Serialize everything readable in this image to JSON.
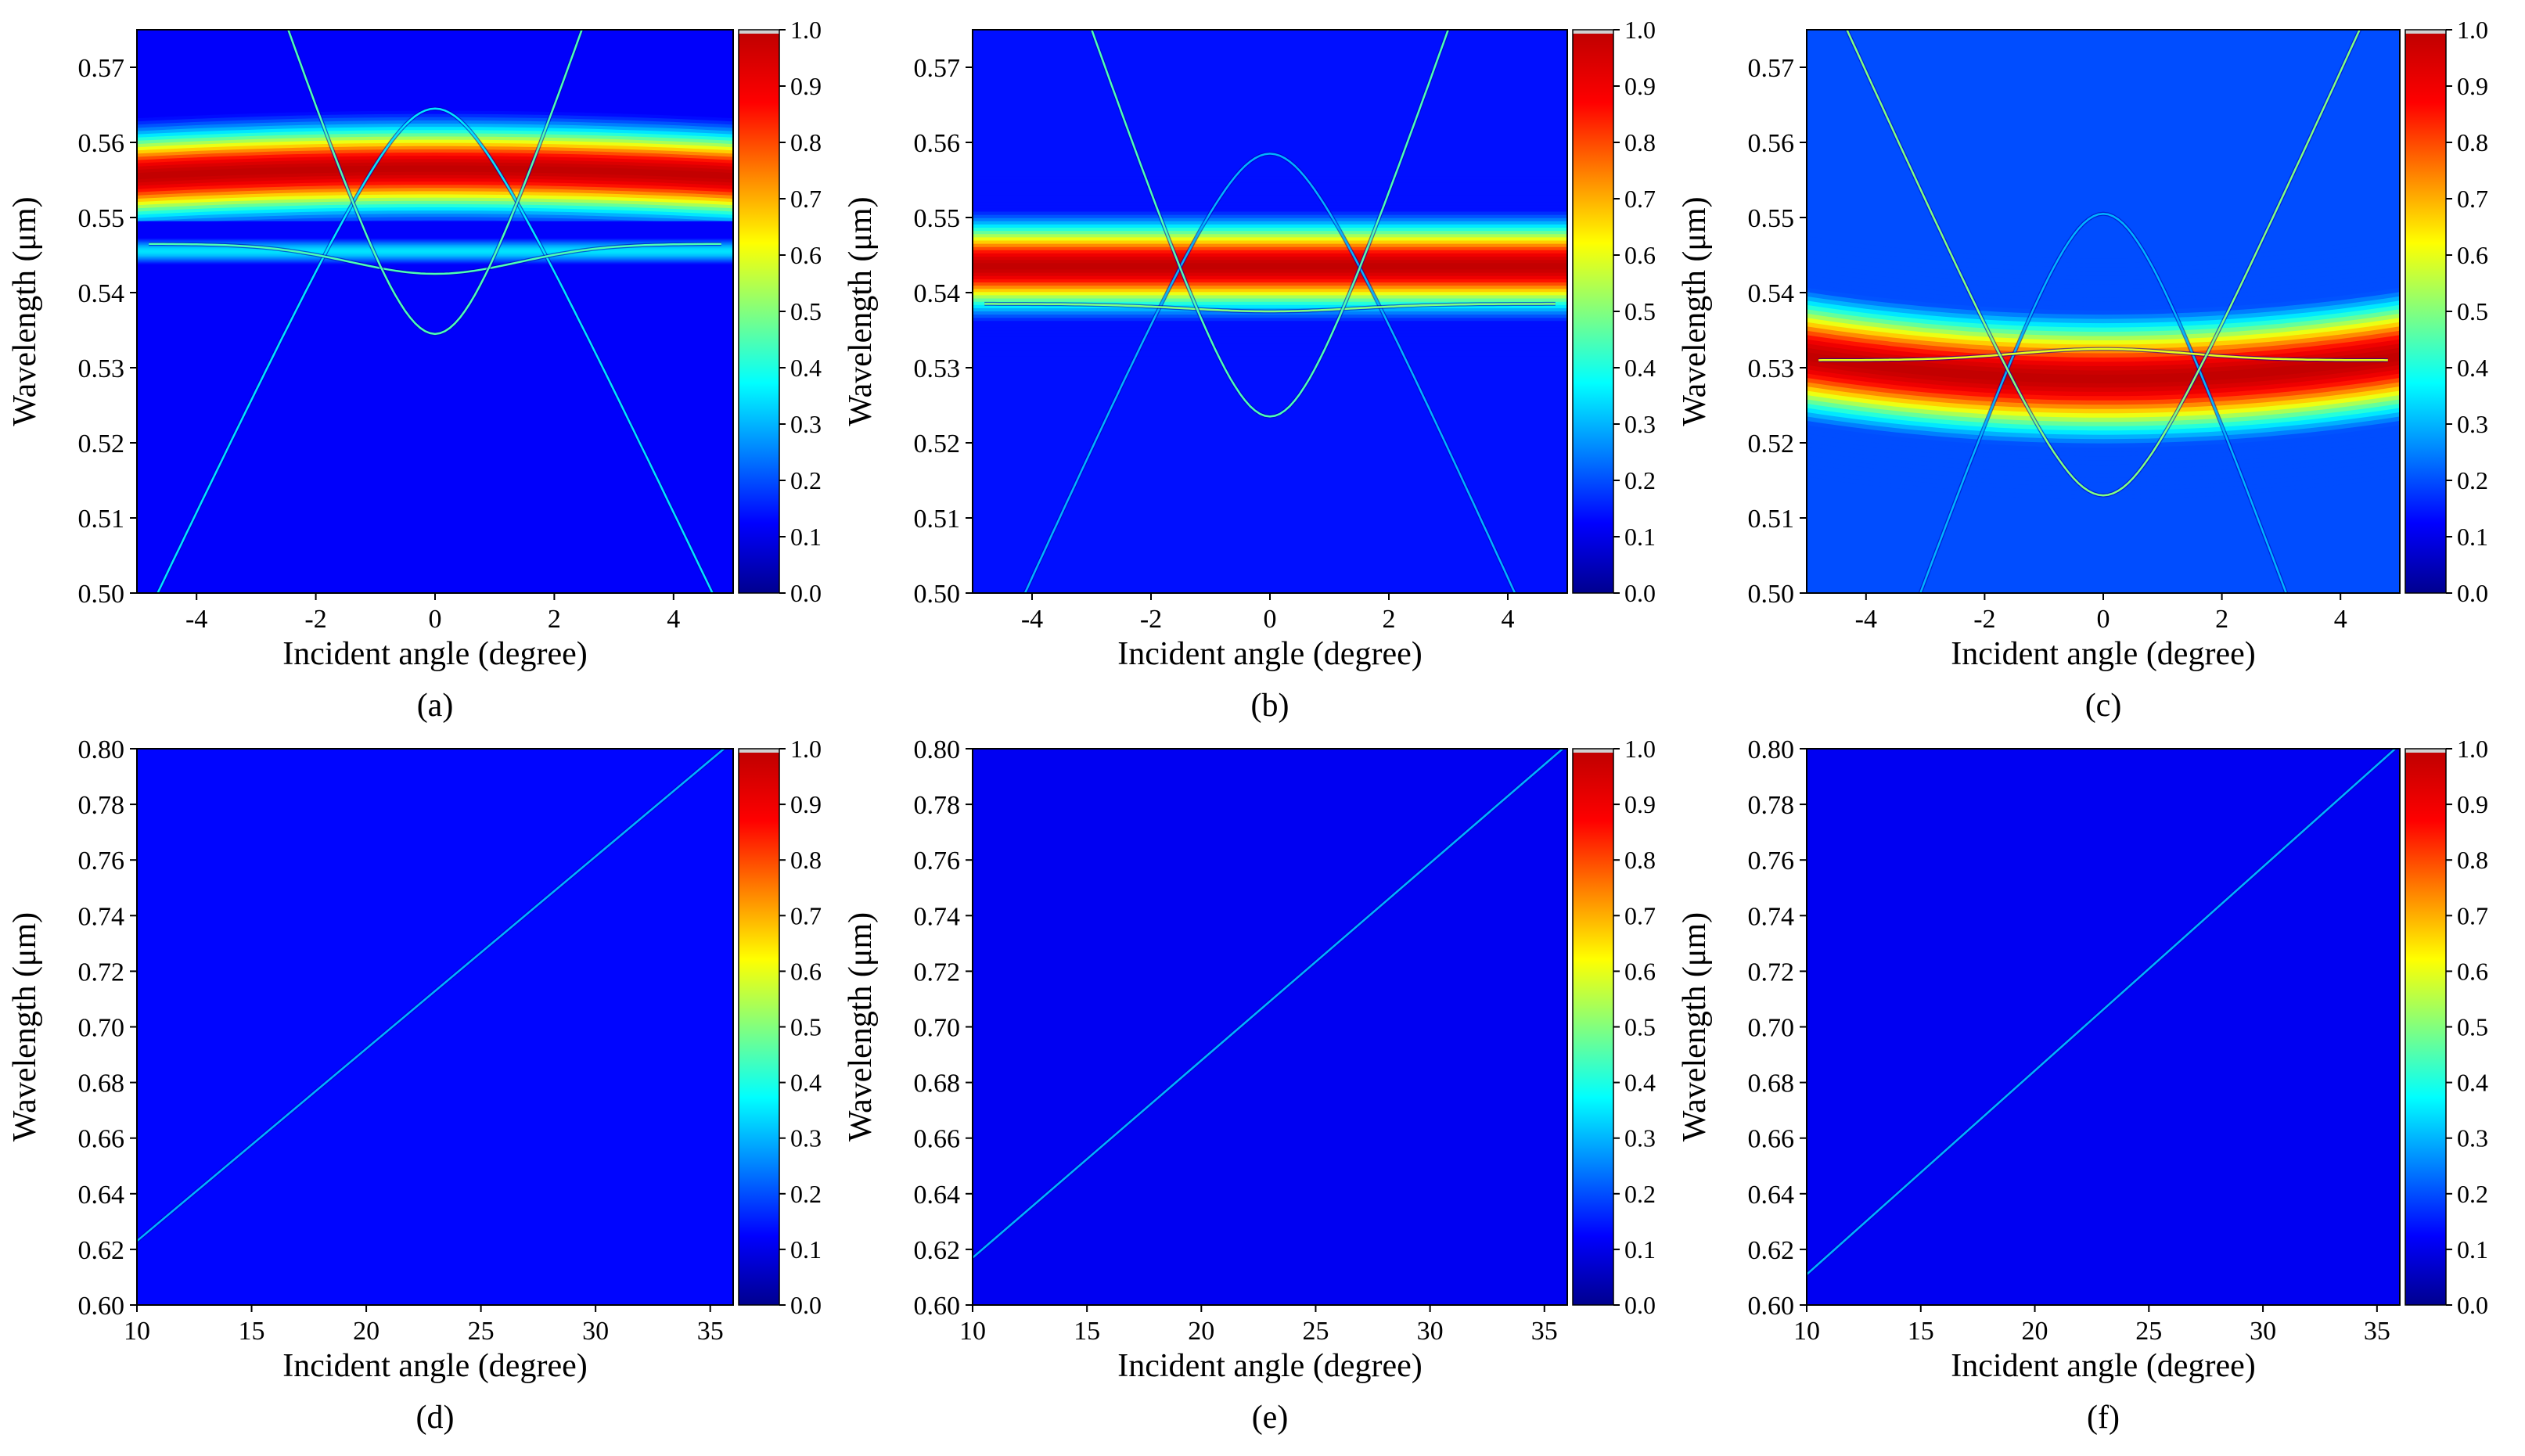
{
  "figure": {
    "colormap": [
      "#00008f",
      "#0000ff",
      "#0080ff",
      "#00ffff",
      "#80ff80",
      "#ffff00",
      "#ff8000",
      "#ff0000",
      "#c00000"
    ],
    "colorbar": {
      "min": 0.0,
      "max": 1.0,
      "ticks": [
        "0.0",
        "0.1",
        "0.2",
        "0.3",
        "0.4",
        "0.5",
        "0.6",
        "0.7",
        "0.8",
        "0.9",
        "1.0"
      ]
    }
  },
  "chart_data": [
    {
      "type": "heatmap",
      "panel_label": "(a)",
      "xlabel": "Incident angle (degree)",
      "ylabel": "Wavelength (μm)",
      "xlim": [
        -5,
        5
      ],
      "ylim": [
        0.5,
        0.575
      ],
      "xticks": [
        -4,
        -2,
        0,
        2,
        4
      ],
      "xtick_labels": [
        "-4",
        "-2",
        "0",
        "2",
        "4"
      ],
      "yticks": [
        0.5,
        0.51,
        0.52,
        0.53,
        0.54,
        0.55,
        0.56,
        0.57
      ],
      "ytick_labels": [
        "0.50",
        "0.51",
        "0.52",
        "0.53",
        "0.54",
        "0.55",
        "0.56",
        "0.57"
      ],
      "background_value": 0.12,
      "bands": [
        {
          "center": 0.5565,
          "half_width": 0.012,
          "peak": 1.0,
          "curve": -4e-05
        },
        {
          "center": 0.5455,
          "half_width": 0.004,
          "peak": 0.35,
          "curve": 0.0
        }
      ],
      "modes": [
        {
          "kind": "hyperbola",
          "vertex": 0.5645,
          "slope": 0.004,
          "k": 0.9,
          "dir": -1,
          "value": 0.35
        },
        {
          "kind": "dip",
          "vertex": 0.5425,
          "edge": 0.5465,
          "xmax": 4.8,
          "value": 0.45
        },
        {
          "kind": "hyperbola",
          "vertex": 0.5345,
          "slope": 0.0056,
          "k": 0.9,
          "dir": 1,
          "value": 0.45
        }
      ]
    },
    {
      "type": "heatmap",
      "panel_label": "(b)",
      "xlabel": "Incident angle (degree)",
      "ylabel": "Wavelength (μm)",
      "xlim": [
        -5,
        5
      ],
      "ylim": [
        0.5,
        0.575
      ],
      "xticks": [
        -4,
        -2,
        0,
        2,
        4
      ],
      "xtick_labels": [
        "-4",
        "-2",
        "0",
        "2",
        "4"
      ],
      "yticks": [
        0.5,
        0.51,
        0.52,
        0.53,
        0.54,
        0.55,
        0.56,
        0.57
      ],
      "ytick_labels": [
        "0.50",
        "0.51",
        "0.52",
        "0.53",
        "0.54",
        "0.55",
        "0.56",
        "0.57"
      ],
      "background_value": 0.14,
      "bands": [
        {
          "center": 0.5435,
          "half_width": 0.012,
          "peak": 1.0,
          "curve": 0.0
        }
      ],
      "modes": [
        {
          "kind": "hyperbola",
          "vertex": 0.5585,
          "slope": 0.0042,
          "k": 0.9,
          "dir": -1,
          "value": 0.3
        },
        {
          "kind": "dip",
          "vertex": 0.5375,
          "edge": 0.5385,
          "xmax": 4.8,
          "value": 0.5
        },
        {
          "kind": "hyperbola",
          "vertex": 0.5235,
          "slope": 0.0055,
          "k": 0.9,
          "dir": 1,
          "value": 0.45
        }
      ]
    },
    {
      "type": "heatmap",
      "panel_label": "(c)",
      "xlabel": "Incident angle (degree)",
      "ylabel": "Wavelength (μm)",
      "xlim": [
        -5,
        5
      ],
      "ylim": [
        0.5,
        0.575
      ],
      "xticks": [
        -4,
        -2,
        0,
        2,
        4
      ],
      "xtick_labels": [
        "-4",
        "-2",
        "0",
        "2",
        "4"
      ],
      "yticks": [
        0.5,
        0.51,
        0.52,
        0.53,
        0.54,
        0.55,
        0.56,
        0.57
      ],
      "ytick_labels": [
        "0.50",
        "0.51",
        "0.52",
        "0.53",
        "0.54",
        "0.55",
        "0.56",
        "0.57"
      ],
      "background_value": 0.2,
      "bands": [
        {
          "center": 0.5285,
          "half_width": 0.016,
          "peak": 1.0,
          "curve": 0.00012
        }
      ],
      "modes": [
        {
          "kind": "hyperbola",
          "vertex": 0.5505,
          "slope": 0.0052,
          "k": 0.9,
          "dir": -1,
          "value": 0.3
        },
        {
          "kind": "dip",
          "vertex": 0.5325,
          "edge": 0.531,
          "xmax": 4.8,
          "value": 0.6
        },
        {
          "kind": "hyperbola",
          "vertex": 0.513,
          "slope": 0.0042,
          "k": 0.9,
          "dir": 1,
          "value": 0.5
        }
      ]
    },
    {
      "type": "heatmap",
      "panel_label": "(d)",
      "xlabel": "Incident angle (degree)",
      "ylabel": "Wavelength (μm)",
      "xlim": [
        10,
        36
      ],
      "ylim": [
        0.6,
        0.8
      ],
      "xticks": [
        10,
        15,
        20,
        25,
        30,
        35
      ],
      "xtick_labels": [
        "10",
        "15",
        "20",
        "25",
        "30",
        "35"
      ],
      "yticks": [
        0.6,
        0.62,
        0.64,
        0.66,
        0.68,
        0.7,
        0.72,
        0.74,
        0.76,
        0.78,
        0.8
      ],
      "ytick_labels": [
        "0.60",
        "0.62",
        "0.64",
        "0.66",
        "0.68",
        "0.70",
        "0.72",
        "0.74",
        "0.76",
        "0.78",
        "0.80"
      ],
      "background_value": 0.13,
      "bands": [],
      "modes": [
        {
          "kind": "line",
          "x0": 10,
          "y0": 0.623,
          "x1": 35.6,
          "y1": 0.8,
          "value": 0.3
        }
      ]
    },
    {
      "type": "heatmap",
      "panel_label": "(e)",
      "xlabel": "Incident angle (degree)",
      "ylabel": "Wavelength (μm)",
      "xlim": [
        10,
        36
      ],
      "ylim": [
        0.6,
        0.8
      ],
      "xticks": [
        10,
        15,
        20,
        25,
        30,
        35
      ],
      "xtick_labels": [
        "10",
        "15",
        "20",
        "25",
        "30",
        "35"
      ],
      "yticks": [
        0.6,
        0.62,
        0.64,
        0.66,
        0.68,
        0.7,
        0.72,
        0.74,
        0.76,
        0.78,
        0.8
      ],
      "ytick_labels": [
        "0.60",
        "0.62",
        "0.64",
        "0.66",
        "0.68",
        "0.70",
        "0.72",
        "0.74",
        "0.76",
        "0.78",
        "0.80"
      ],
      "background_value": 0.11,
      "bands": [],
      "modes": [
        {
          "kind": "line",
          "x0": 10,
          "y0": 0.617,
          "x1": 35.8,
          "y1": 0.8,
          "value": 0.3
        }
      ]
    },
    {
      "type": "heatmap",
      "panel_label": "(f)",
      "xlabel": "Incident angle (degree)",
      "ylabel": "Wavelength (μm)",
      "xlim": [
        10,
        36
      ],
      "ylim": [
        0.6,
        0.8
      ],
      "xticks": [
        10,
        15,
        20,
        25,
        30,
        35
      ],
      "xtick_labels": [
        "10",
        "15",
        "20",
        "25",
        "30",
        "35"
      ],
      "yticks": [
        0.6,
        0.62,
        0.64,
        0.66,
        0.68,
        0.7,
        0.72,
        0.74,
        0.76,
        0.78,
        0.8
      ],
      "ytick_labels": [
        "0.60",
        "0.62",
        "0.64",
        "0.66",
        "0.68",
        "0.70",
        "0.72",
        "0.74",
        "0.76",
        "0.78",
        "0.80"
      ],
      "background_value": 0.11,
      "bands": [],
      "modes": [
        {
          "kind": "line",
          "x0": 10,
          "y0": 0.611,
          "x1": 35.8,
          "y1": 0.8,
          "value": 0.3
        }
      ]
    }
  ]
}
